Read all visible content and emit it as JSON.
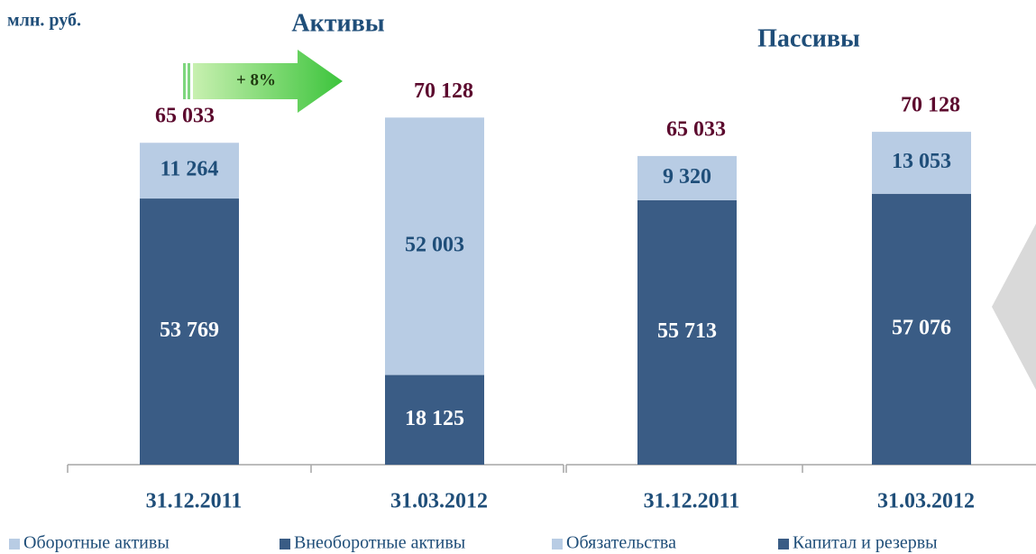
{
  "unit": "млн. руб.",
  "chart_data": [
    {
      "type": "bar",
      "stacked": true,
      "title": "Активы",
      "categories": [
        "31.12.2011",
        "31.03.2012"
      ],
      "series": [
        {
          "name": "Оборотные активы",
          "color": "#b8cce4",
          "values": [
            11264,
            52003
          ],
          "value_labels": [
            "11 264",
            "52 003"
          ]
        },
        {
          "name": "Внеоборотные активы",
          "color": "#3a5c85",
          "values": [
            53769,
            18125
          ],
          "value_labels": [
            "53 769",
            "18 125"
          ]
        }
      ],
      "totals": [
        65033,
        70128
      ],
      "total_labels": [
        "65 033",
        "70 128"
      ],
      "annotation": "+ 8%",
      "ylim": [
        0,
        70000
      ]
    },
    {
      "type": "bar",
      "stacked": true,
      "title": "Пассивы",
      "categories": [
        "31.12.2011",
        "31.03.2012"
      ],
      "series": [
        {
          "name": "Обязательства",
          "color": "#b8cce4",
          "values": [
            9320,
            13053
          ],
          "value_labels": [
            "9 320",
            "13 053"
          ]
        },
        {
          "name": "Капитал и резервы",
          "color": "#3a5c85",
          "values": [
            55713,
            57076
          ],
          "value_labels": [
            "55 713",
            "57 076"
          ]
        }
      ],
      "totals": [
        65033,
        70128
      ],
      "total_labels": [
        "65 033",
        "70 128"
      ],
      "ylim": [
        0,
        73000
      ]
    }
  ]
}
